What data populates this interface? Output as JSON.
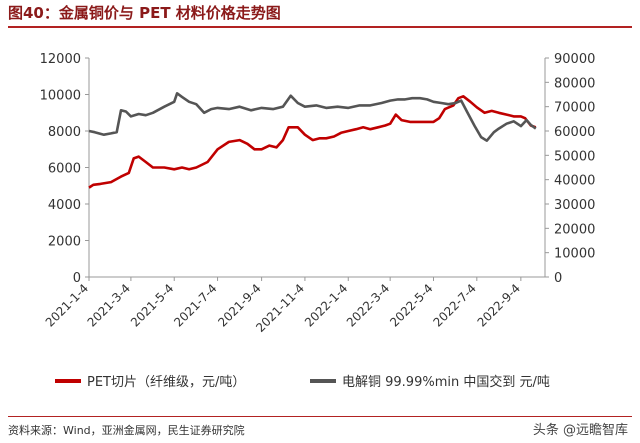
{
  "header": {
    "title": "图40：金属铜价与 PET 材料价格走势图"
  },
  "footer": {
    "source": "资料来源：Wind，亚洲金属网，民生证券研究院",
    "watermark": "头条 @远瞻智库"
  },
  "chart_data": {
    "type": "line",
    "x_tick_labels": [
      "2021-1-4",
      "2021-3-4",
      "2021-5-4",
      "2021-7-4",
      "2021-9-4",
      "2021-11-4",
      "2022-1-4",
      "2022-3-4",
      "2022-5-4",
      "2022-7-4",
      "2022-9-4"
    ],
    "y_left": {
      "lim": [
        0,
        12000
      ],
      "ticks": [
        "0",
        "2000",
        "4000",
        "6000",
        "8000",
        "10000",
        "12000"
      ]
    },
    "y_right": {
      "lim": [
        0,
        90000
      ],
      "ticks": [
        "0",
        "10000",
        "20000",
        "30000",
        "40000",
        "50000",
        "60000",
        "70000",
        "80000",
        "90000"
      ]
    },
    "grid": false,
    "legend_position": "bottom",
    "series": [
      {
        "name": "PET切片（纤维级，元/吨）",
        "axis": "left",
        "color": "#c00000",
        "points": [
          [
            "2021-01-04",
            4900
          ],
          [
            "2021-01-10",
            5050
          ],
          [
            "2021-01-20",
            5100
          ],
          [
            "2021-02-04",
            5200
          ],
          [
            "2021-02-18",
            5500
          ],
          [
            "2021-03-01",
            5700
          ],
          [
            "2021-03-08",
            6500
          ],
          [
            "2021-03-15",
            6600
          ],
          [
            "2021-03-25",
            6300
          ],
          [
            "2021-04-04",
            6000
          ],
          [
            "2021-04-20",
            6000
          ],
          [
            "2021-05-04",
            5900
          ],
          [
            "2021-05-15",
            6000
          ],
          [
            "2021-05-25",
            5900
          ],
          [
            "2021-06-04",
            6000
          ],
          [
            "2021-06-20",
            6300
          ],
          [
            "2021-07-04",
            7000
          ],
          [
            "2021-07-20",
            7400
          ],
          [
            "2021-08-04",
            7500
          ],
          [
            "2021-08-15",
            7300
          ],
          [
            "2021-08-25",
            7000
          ],
          [
            "2021-09-04",
            7000
          ],
          [
            "2021-09-15",
            7200
          ],
          [
            "2021-09-25",
            7100
          ],
          [
            "2021-10-04",
            7500
          ],
          [
            "2021-10-12",
            8200
          ],
          [
            "2021-10-25",
            8200
          ],
          [
            "2021-11-04",
            7800
          ],
          [
            "2021-11-15",
            7500
          ],
          [
            "2021-11-25",
            7600
          ],
          [
            "2021-12-04",
            7600
          ],
          [
            "2021-12-15",
            7700
          ],
          [
            "2021-12-25",
            7900
          ],
          [
            "2022-01-04",
            8000
          ],
          [
            "2022-01-15",
            8100
          ],
          [
            "2022-01-25",
            8200
          ],
          [
            "2022-02-04",
            8100
          ],
          [
            "2022-02-15",
            8200
          ],
          [
            "2022-02-25",
            8300
          ],
          [
            "2022-03-04",
            8400
          ],
          [
            "2022-03-12",
            8900
          ],
          [
            "2022-03-20",
            8600
          ],
          [
            "2022-04-01",
            8500
          ],
          [
            "2022-04-10",
            8500
          ],
          [
            "2022-04-20",
            8500
          ],
          [
            "2022-05-04",
            8500
          ],
          [
            "2022-05-12",
            8700
          ],
          [
            "2022-05-20",
            9200
          ],
          [
            "2022-06-01",
            9400
          ],
          [
            "2022-06-08",
            9800
          ],
          [
            "2022-06-15",
            9900
          ],
          [
            "2022-06-25",
            9600
          ],
          [
            "2022-07-04",
            9300
          ],
          [
            "2022-07-15",
            9000
          ],
          [
            "2022-07-25",
            9100
          ],
          [
            "2022-08-04",
            9000
          ],
          [
            "2022-08-15",
            8900
          ],
          [
            "2022-08-25",
            8800
          ],
          [
            "2022-09-04",
            8800
          ],
          [
            "2022-09-10",
            8700
          ],
          [
            "2022-09-18",
            8300
          ],
          [
            "2022-09-25",
            8200
          ]
        ]
      },
      {
        "name": "电解铜 99.99%min 中国交到 元/吨",
        "axis": "right",
        "color": "#555555",
        "points": [
          [
            "2021-01-04",
            60000
          ],
          [
            "2021-01-12",
            59500
          ],
          [
            "2021-01-25",
            58500
          ],
          [
            "2021-02-04",
            59000
          ],
          [
            "2021-02-12",
            59500
          ],
          [
            "2021-02-18",
            68500
          ],
          [
            "2021-02-25",
            68000
          ],
          [
            "2021-03-04",
            66000
          ],
          [
            "2021-03-15",
            67000
          ],
          [
            "2021-03-25",
            66500
          ],
          [
            "2021-04-04",
            67500
          ],
          [
            "2021-04-20",
            70000
          ],
          [
            "2021-05-04",
            72000
          ],
          [
            "2021-05-08",
            75500
          ],
          [
            "2021-05-15",
            74000
          ],
          [
            "2021-05-25",
            72000
          ],
          [
            "2021-06-04",
            71000
          ],
          [
            "2021-06-15",
            67500
          ],
          [
            "2021-06-25",
            69000
          ],
          [
            "2021-07-04",
            69500
          ],
          [
            "2021-07-20",
            69000
          ],
          [
            "2021-08-04",
            70000
          ],
          [
            "2021-08-20",
            68500
          ],
          [
            "2021-09-04",
            69500
          ],
          [
            "2021-09-20",
            69000
          ],
          [
            "2021-10-04",
            70000
          ],
          [
            "2021-10-15",
            74500
          ],
          [
            "2021-10-25",
            71500
          ],
          [
            "2021-11-04",
            70000
          ],
          [
            "2021-11-20",
            70500
          ],
          [
            "2021-12-04",
            69500
          ],
          [
            "2021-12-20",
            70000
          ],
          [
            "2022-01-04",
            69500
          ],
          [
            "2022-01-20",
            70500
          ],
          [
            "2022-02-04",
            70500
          ],
          [
            "2022-02-20",
            71500
          ],
          [
            "2022-03-04",
            72500
          ],
          [
            "2022-03-15",
            73000
          ],
          [
            "2022-03-25",
            73000
          ],
          [
            "2022-04-04",
            73500
          ],
          [
            "2022-04-15",
            73500
          ],
          [
            "2022-04-25",
            73000
          ],
          [
            "2022-05-04",
            72000
          ],
          [
            "2022-05-15",
            71500
          ],
          [
            "2022-05-25",
            71000
          ],
          [
            "2022-06-04",
            71500
          ],
          [
            "2022-06-12",
            72500
          ],
          [
            "2022-06-20",
            68000
          ],
          [
            "2022-07-01",
            62000
          ],
          [
            "2022-07-10",
            57500
          ],
          [
            "2022-07-18",
            56000
          ],
          [
            "2022-07-28",
            59500
          ],
          [
            "2022-08-04",
            61000
          ],
          [
            "2022-08-15",
            63000
          ],
          [
            "2022-08-25",
            64000
          ],
          [
            "2022-09-04",
            62000
          ],
          [
            "2022-09-12",
            64500
          ],
          [
            "2022-09-18",
            62500
          ],
          [
            "2022-09-25",
            61000
          ]
        ]
      }
    ]
  }
}
